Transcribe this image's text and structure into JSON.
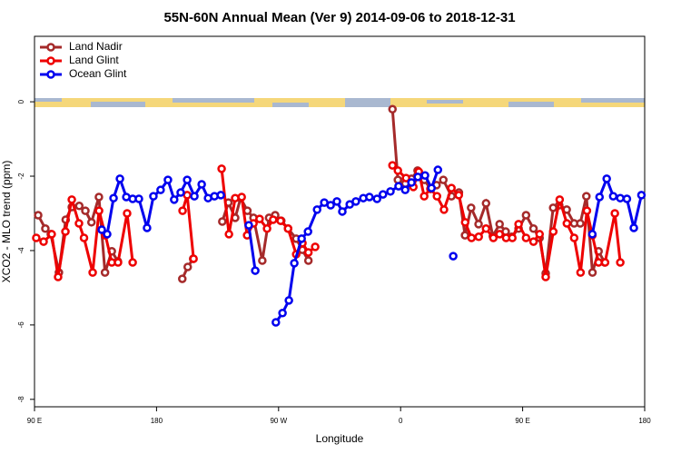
{
  "chart_data": {
    "type": "line",
    "title": "55N-60N Annual Mean (Ver 9)   2014-09-06 to 2018-12-31",
    "x_label": "Longitude",
    "y_label": "XCO2 - MLO trend (ppm)",
    "xlim": [
      90,
      540
    ],
    "xticks": [
      {
        "value": 90,
        "label": "90 E"
      },
      {
        "value": 180,
        "label": "180"
      },
      {
        "value": 270,
        "label": "90 W"
      },
      {
        "value": 360,
        "label": "0"
      },
      {
        "value": 450,
        "label": "90 E"
      },
      {
        "value": 540,
        "label": "180"
      }
    ],
    "ylim": [
      -8.2,
      1.76
    ],
    "yticks": [
      0,
      -2,
      -4,
      -6,
      -8
    ],
    "grid": false,
    "legend": "top-left",
    "series": [
      {
        "name": "Land Nadir",
        "color": "#a52a2a",
        "x": [
          92.7,
          98,
          102,
          108,
          113,
          117.5,
          123,
          127.5,
          132,
          137.5,
          142,
          147,
          151.5,
          null,
          199,
          203,
          207,
          null,
          228.5,
          233,
          238,
          242,
          247,
          251.5,
          258,
          263,
          267.5,
          272,
          277,
          283,
          287.5,
          292,
          null,
          354,
          358,
          363.5,
          368,
          372.5,
          377.5,
          382,
          386.5,
          391.5,
          397.5,
          403,
          407.5,
          412,
          417.5,
          423,
          428,
          433,
          437.5,
          442,
          447,
          452.5,
          458,
          462.5,
          467,
          472.5,
          477,
          482.5,
          488,
          492.5,
          497,
          501.5,
          506,
          510.5
        ],
        "values": [
          -3.05,
          -3.41,
          -3.56,
          -4.59,
          -3.17,
          -2.83,
          -2.8,
          -2.93,
          -3.24,
          -2.56,
          -4.59,
          -4.02,
          -4.29,
          null,
          -4.76,
          -4.44,
          -4.22,
          null,
          -3.22,
          -2.71,
          -3.12,
          -2.59,
          -2.93,
          -3.12,
          -4.27,
          -3.12,
          -3.05,
          -3.2,
          -3.41,
          -3.68,
          -3.98,
          -4.27,
          null,
          -0.2,
          -2.1,
          -2.2,
          -2.07,
          -1.85,
          -2.1,
          -2.34,
          -2.24,
          -2.1,
          -2.54,
          -2.44,
          -3.59,
          -2.85,
          -3.29,
          -2.73,
          -3.61,
          -3.29,
          -3.49,
          -3.63,
          -3.41,
          -3.05,
          -3.41,
          -3.66,
          -4.61,
          -2.85,
          -2.78,
          -2.9,
          -3.27,
          -3.27,
          -2.54,
          -4.59,
          -4.02,
          -4.32
        ]
      },
      {
        "name": "Land Glint",
        "color": "#ee0000",
        "x": [
          91.3,
          96.7,
          102.7,
          107.4,
          112.8,
          117.5,
          122.8,
          126.5,
          132.9,
          137.6,
          142.3,
          147,
          151.6,
          158.3,
          162.4,
          null,
          199.2,
          202.6,
          207.3,
          null,
          228,
          233.4,
          238,
          242.8,
          246.8,
          251.5,
          256,
          261.5,
          266,
          271.5,
          277,
          283,
          287.6,
          292,
          297,
          null,
          354,
          358,
          364,
          369.4,
          373.4,
          377.4,
          382,
          386.8,
          392,
          397.5,
          402.9,
          407.6,
          412.3,
          417.6,
          423,
          428.4,
          433,
          437.8,
          442.4,
          447,
          452.5,
          458,
          462.5,
          467,
          472.6,
          477.3,
          482.6,
          488,
          492.7,
          497.4,
          501.4,
          506,
          510.8,
          518,
          522
        ],
        "values": [
          -3.66,
          -3.76,
          -3.56,
          -4.71,
          -3.49,
          -2.63,
          -3.27,
          -3.66,
          -4.59,
          -2.93,
          -3.59,
          -4.32,
          -4.32,
          -3.0,
          -4.32,
          null,
          -2.93,
          -2.51,
          -4.22,
          null,
          -1.8,
          -3.56,
          -2.59,
          -2.56,
          -3.59,
          -3.27,
          -3.15,
          -3.41,
          -3.17,
          -3.2,
          -3.41,
          -4.1,
          -3.8,
          -4.05,
          -3.9,
          null,
          -1.71,
          -1.85,
          -2.05,
          -2.29,
          -1.88,
          -2.54,
          -2.34,
          -2.54,
          -2.9,
          -2.32,
          -2.51,
          -3.24,
          -3.66,
          -3.63,
          -3.41,
          -3.66,
          -3.56,
          -3.66,
          -3.66,
          -3.29,
          -3.66,
          -3.76,
          -3.56,
          -4.71,
          -3.49,
          -2.63,
          -3.27,
          -3.66,
          -4.59,
          -2.93,
          -3.59,
          -4.32,
          -4.32,
          -3.0,
          -4.32
        ]
      },
      {
        "name": "Ocean Glint",
        "color": "#0000ee",
        "x": [
          139.6,
          143.6,
          148.3,
          153,
          157.7,
          162.4,
          167,
          173,
          177.7,
          183,
          188.4,
          193,
          197.8,
          202.6,
          207.9,
          213.3,
          218,
          222.7,
          227.4,
          null,
          248,
          252.8,
          null,
          268,
          272.9,
          277.6,
          281.6,
          287,
          291.7,
          298.4,
          303.7,
          308.4,
          313,
          317,
          322.5,
          327,
          332.5,
          337,
          342.6,
          347,
          352.5,
          358.5,
          363.4,
          368,
          372.7,
          378,
          382.8,
          387.5,
          null,
          398.8,
          null,
          501.4,
          506.7,
          512,
          516.8,
          522,
          526.9,
          532,
          537.6
        ],
        "values": [
          -3.44,
          -3.56,
          -2.59,
          -2.07,
          -2.56,
          -2.61,
          -2.61,
          -3.39,
          -2.54,
          -2.37,
          -2.1,
          -2.63,
          -2.44,
          -2.1,
          -2.54,
          -2.22,
          -2.59,
          -2.54,
          -2.51,
          null,
          -3.32,
          -4.54,
          null,
          -5.93,
          -5.68,
          -5.34,
          -4.34,
          -3.68,
          -3.49,
          -2.9,
          -2.71,
          -2.78,
          -2.68,
          -2.95,
          -2.76,
          -2.68,
          -2.59,
          -2.56,
          -2.61,
          -2.49,
          -2.41,
          -2.27,
          -2.37,
          -2.17,
          -2.02,
          -1.98,
          -2.32,
          -1.83,
          null,
          -4.15,
          null,
          -3.56,
          -2.56,
          -2.07,
          -2.54,
          -2.59,
          -2.61,
          -3.39,
          -2.51
        ]
      }
    ]
  }
}
